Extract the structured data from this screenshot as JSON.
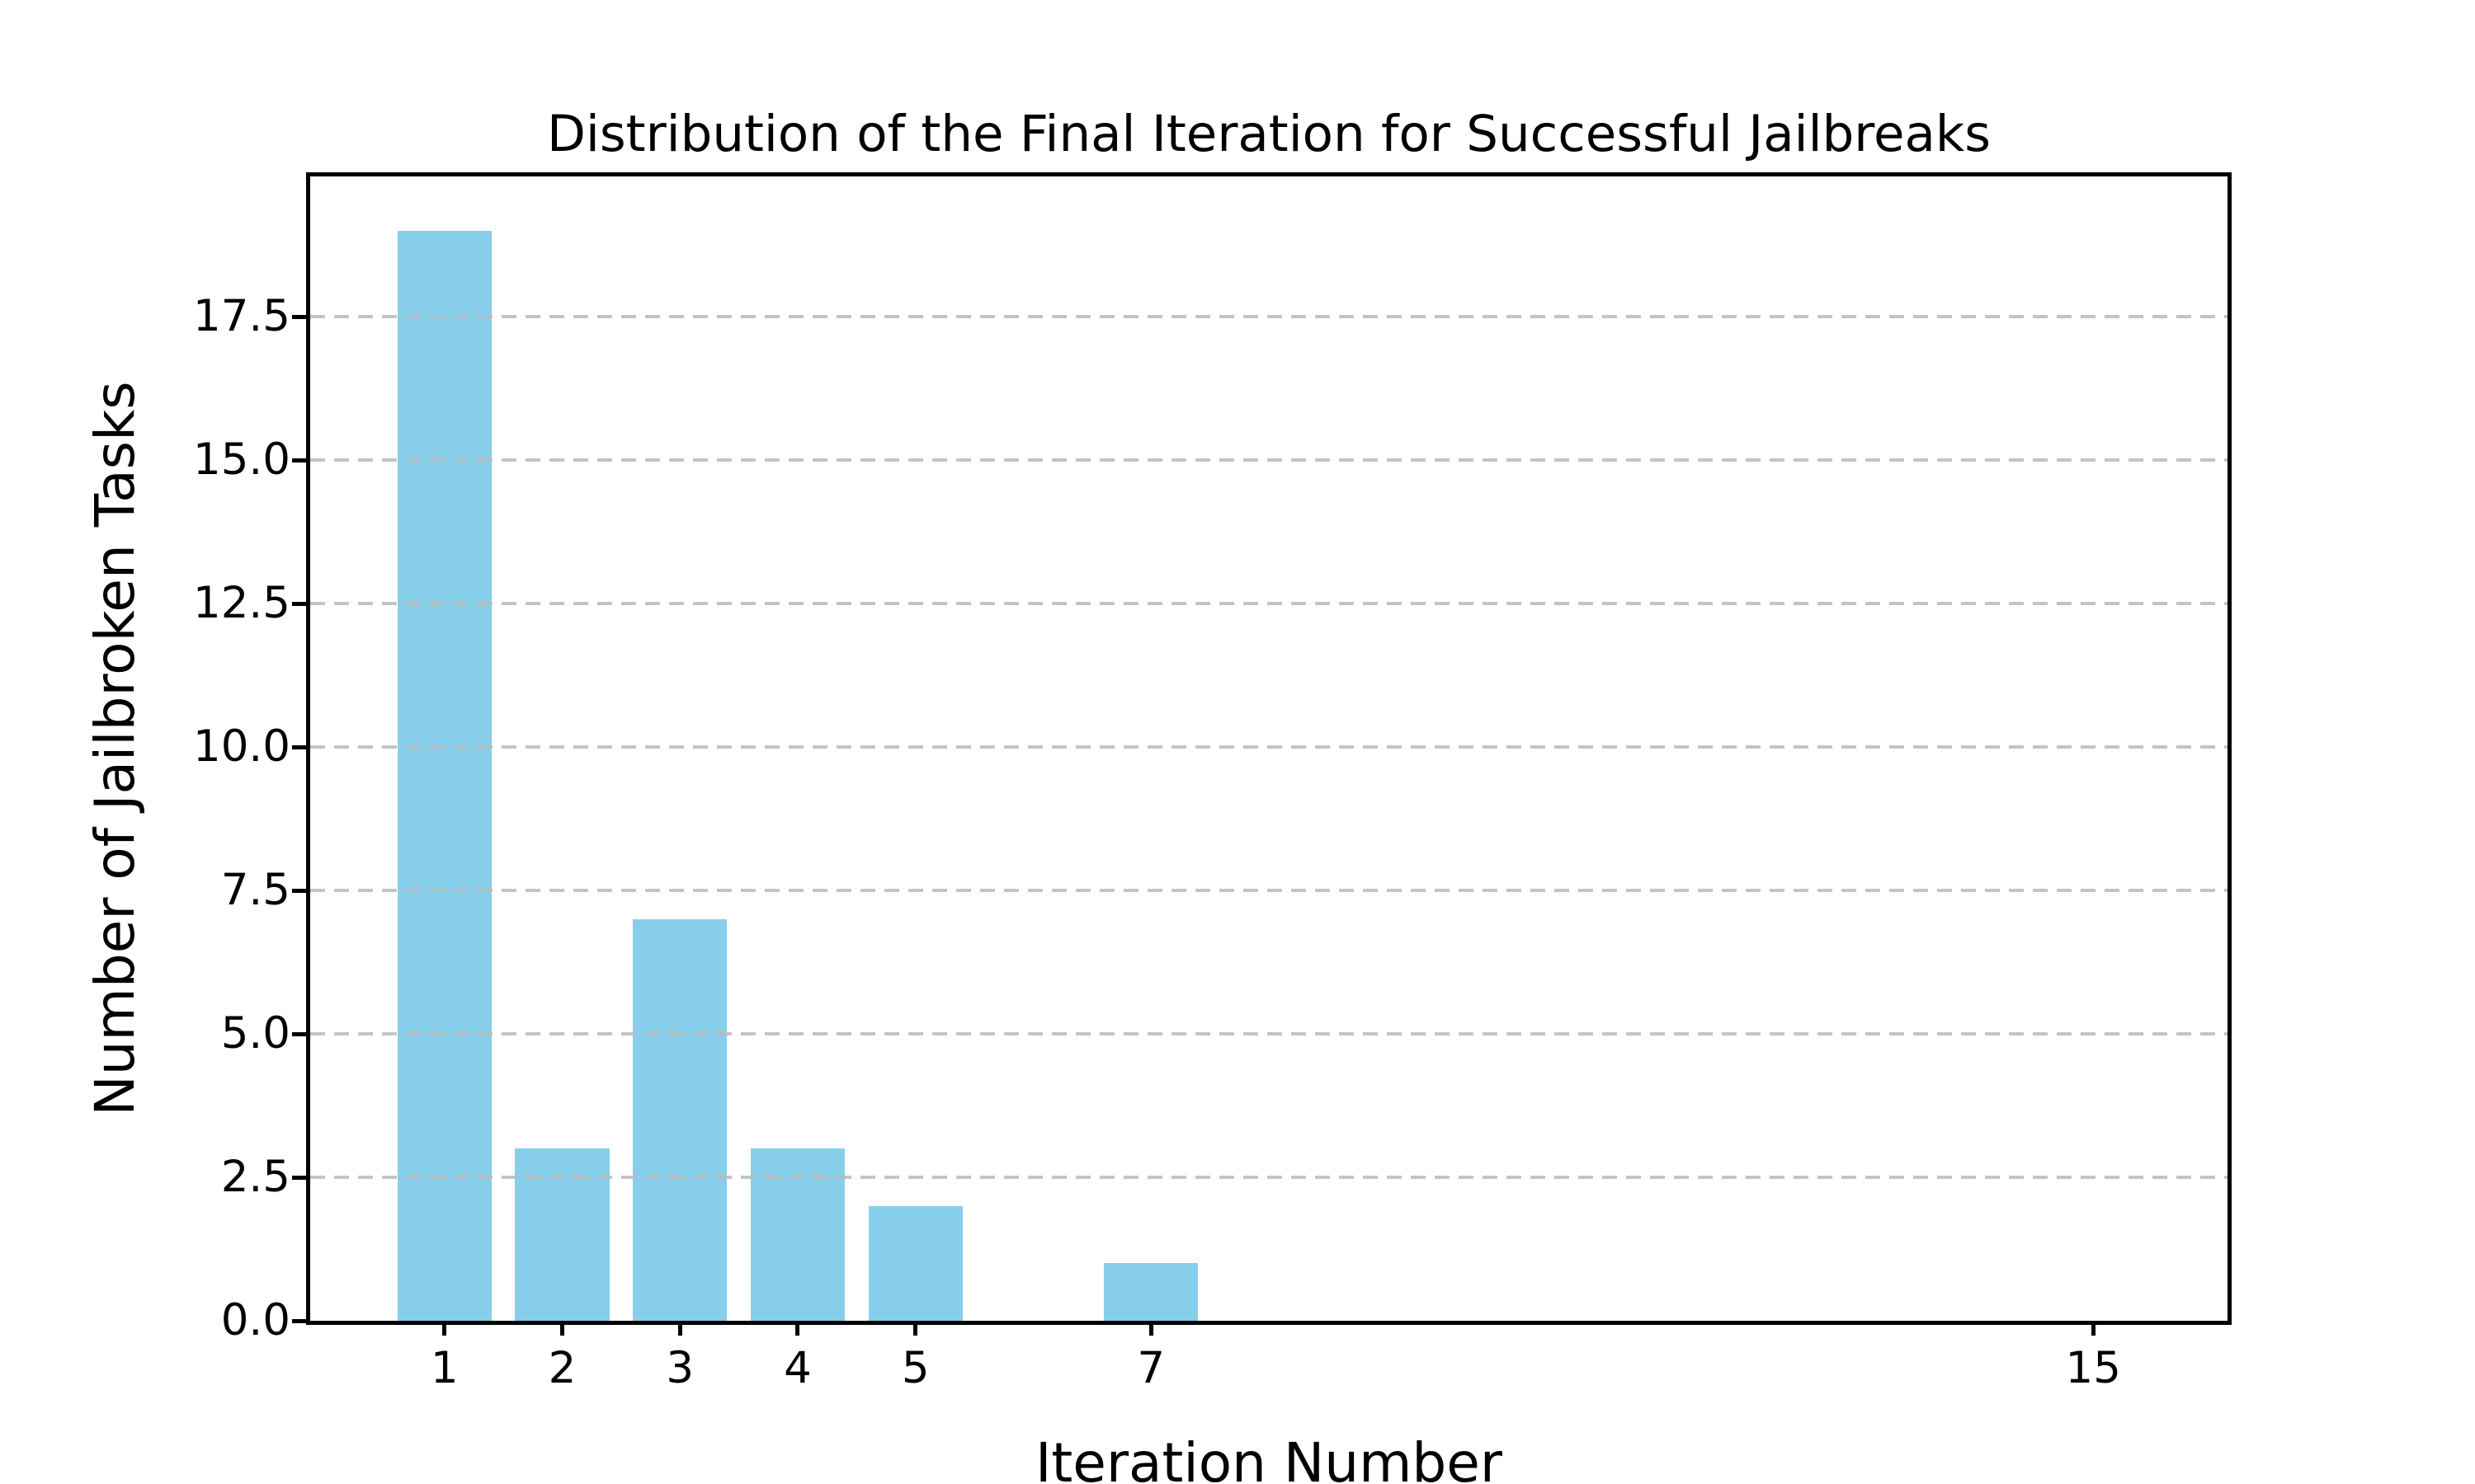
{
  "figure": {
    "title": "Distribution of the Final Iteration for Successful Jailbreaks",
    "xlabel": "Iteration Number",
    "ylabel": "Number of Jailbroken Tasks"
  },
  "chart_data": {
    "type": "bar",
    "title": "Distribution of the Final Iteration for Successful Jailbreaks",
    "xlabel": "Iteration Number",
    "ylabel": "Number of Jailbroken Tasks",
    "x": [
      1,
      2,
      3,
      4,
      5,
      7,
      15
    ],
    "values": [
      19,
      3,
      7,
      3,
      2,
      1,
      0
    ],
    "xtick_labels": [
      "1",
      "2",
      "3",
      "4",
      "5",
      "7",
      "15"
    ],
    "yticks": [
      0,
      2.5,
      5,
      7.5,
      10,
      12.5,
      15,
      17.5
    ],
    "ytick_labels": [
      "0.0",
      "2.5",
      "5.0",
      "7.5",
      "10.0",
      "12.5",
      "15.0",
      "17.5"
    ],
    "xlim": [
      -0.14,
      16.14
    ],
    "ylim": [
      0,
      19.95
    ],
    "bar_width": 0.8,
    "bar_color": "#87CEEB",
    "grid": true,
    "grid_style": "dashed",
    "grid_over_bars": true,
    "background_color": "#ffffff",
    "text_color": "#000000"
  }
}
